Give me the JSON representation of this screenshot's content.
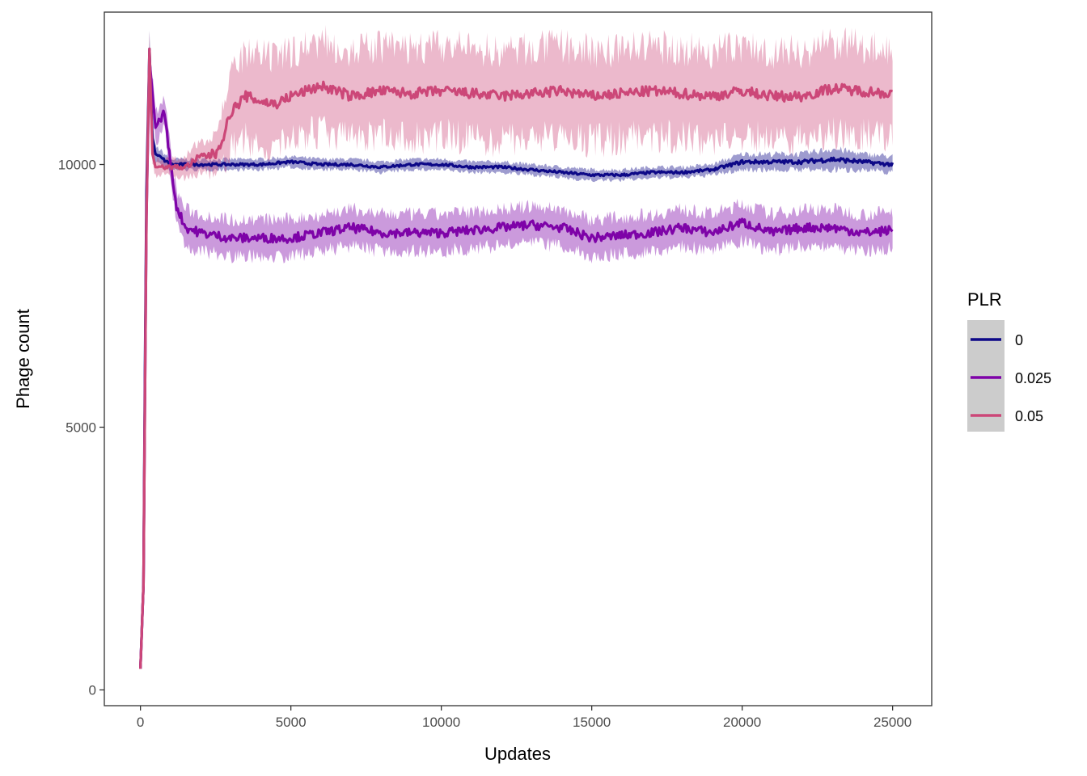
{
  "chart_data": {
    "type": "line",
    "title": "",
    "xlabel": "Updates",
    "ylabel": "Phage count",
    "xlim": [
      -1200,
      26300
    ],
    "ylim": [
      -300,
      12900
    ],
    "x_ticks": [
      0,
      5000,
      10000,
      15000,
      20000,
      25000
    ],
    "y_ticks": [
      0,
      5000,
      10000
    ],
    "x_tick_labels": [
      "0",
      "5000",
      "10000",
      "15000",
      "20000",
      "25000"
    ],
    "y_tick_labels": [
      "0",
      "5000",
      "10000"
    ],
    "grid": false,
    "legend": {
      "title": "PLR",
      "placement": "right"
    },
    "series": [
      {
        "name": "0",
        "color": "#0d0887",
        "band_color": "#0d0887",
        "points": [
          [
            0,
            400
          ],
          [
            100,
            2000
          ],
          [
            150,
            6000
          ],
          [
            200,
            9500
          ],
          [
            300,
            12200
          ],
          [
            400,
            10500
          ],
          [
            500,
            10200
          ],
          [
            1000,
            10000
          ],
          [
            2000,
            10000
          ],
          [
            3000,
            10000
          ],
          [
            4000,
            10000
          ],
          [
            5000,
            10050
          ],
          [
            6000,
            10000
          ],
          [
            7000,
            10000
          ],
          [
            8000,
            9950
          ],
          [
            9000,
            10000
          ],
          [
            10000,
            10000
          ],
          [
            11000,
            9950
          ],
          [
            12000,
            9950
          ],
          [
            13000,
            9900
          ],
          [
            14000,
            9850
          ],
          [
            15000,
            9800
          ],
          [
            16000,
            9800
          ],
          [
            17000,
            9850
          ],
          [
            18000,
            9850
          ],
          [
            19000,
            9900
          ],
          [
            20000,
            10050
          ],
          [
            21000,
            10050
          ],
          [
            22000,
            10050
          ],
          [
            23000,
            10100
          ],
          [
            24000,
            10050
          ],
          [
            25000,
            10000
          ]
        ],
        "band_halfwidth": [
          0,
          200,
          300,
          300,
          300,
          200,
          150,
          100,
          100,
          100,
          100,
          100,
          100,
          100,
          100,
          100,
          100,
          100,
          100,
          100,
          100,
          100,
          100,
          100,
          100,
          100,
          150,
          150,
          150,
          200,
          150,
          150
        ]
      },
      {
        "name": "0.025",
        "color": "#7e03a8",
        "band_color": "#7e03a8",
        "points": [
          [
            0,
            400
          ],
          [
            100,
            2000
          ],
          [
            200,
            9000
          ],
          [
            300,
            12000
          ],
          [
            500,
            10700
          ],
          [
            800,
            11000
          ],
          [
            1000,
            10000
          ],
          [
            1200,
            9200
          ],
          [
            1500,
            8800
          ],
          [
            2000,
            8700
          ],
          [
            3000,
            8600
          ],
          [
            4000,
            8600
          ],
          [
            5000,
            8600
          ],
          [
            6000,
            8700
          ],
          [
            7000,
            8800
          ],
          [
            8000,
            8700
          ],
          [
            9000,
            8700
          ],
          [
            10000,
            8700
          ],
          [
            11000,
            8750
          ],
          [
            12000,
            8800
          ],
          [
            13000,
            8850
          ],
          [
            14000,
            8800
          ],
          [
            15000,
            8600
          ],
          [
            16000,
            8650
          ],
          [
            17000,
            8700
          ],
          [
            18000,
            8800
          ],
          [
            19000,
            8700
          ],
          [
            20000,
            8900
          ],
          [
            21000,
            8700
          ],
          [
            22000,
            8800
          ],
          [
            23000,
            8800
          ],
          [
            24000,
            8700
          ],
          [
            25000,
            8750
          ]
        ],
        "band_halfwidth": [
          0,
          200,
          300,
          300,
          300,
          300,
          300,
          300,
          350,
          350,
          350,
          350,
          350,
          350,
          350,
          350,
          350,
          350,
          350,
          350,
          350,
          350,
          350,
          350,
          350,
          350,
          350,
          350,
          350,
          350,
          350,
          350,
          350
        ]
      },
      {
        "name": "0.05",
        "color": "#cc4778",
        "band_color": "#cc4778",
        "points": [
          [
            0,
            400
          ],
          [
            100,
            2000
          ],
          [
            200,
            9000
          ],
          [
            300,
            12200
          ],
          [
            400,
            10200
          ],
          [
            500,
            9950
          ],
          [
            1000,
            9950
          ],
          [
            1500,
            9950
          ],
          [
            2000,
            10150
          ],
          [
            2500,
            10200
          ],
          [
            2800,
            10600
          ],
          [
            3000,
            11000
          ],
          [
            3500,
            11300
          ],
          [
            4000,
            11200
          ],
          [
            4500,
            11150
          ],
          [
            5000,
            11300
          ],
          [
            6000,
            11500
          ],
          [
            7000,
            11300
          ],
          [
            8000,
            11400
          ],
          [
            9000,
            11350
          ],
          [
            10000,
            11400
          ],
          [
            11000,
            11350
          ],
          [
            12000,
            11300
          ],
          [
            13000,
            11350
          ],
          [
            14000,
            11400
          ],
          [
            15000,
            11300
          ],
          [
            16000,
            11350
          ],
          [
            17000,
            11400
          ],
          [
            18000,
            11350
          ],
          [
            19000,
            11300
          ],
          [
            20000,
            11400
          ],
          [
            21000,
            11300
          ],
          [
            22000,
            11300
          ],
          [
            23000,
            11450
          ],
          [
            24000,
            11400
          ],
          [
            25000,
            11350
          ]
        ],
        "band_halfwidth": [
          0,
          200,
          300,
          300,
          200,
          150,
          150,
          200,
          300,
          400,
          600,
          700,
          800,
          850,
          850,
          850,
          850,
          850,
          850,
          850,
          850,
          850,
          850,
          850,
          850,
          850,
          850,
          850,
          850,
          850,
          850,
          850,
          850,
          850,
          850,
          850
        ]
      }
    ]
  }
}
